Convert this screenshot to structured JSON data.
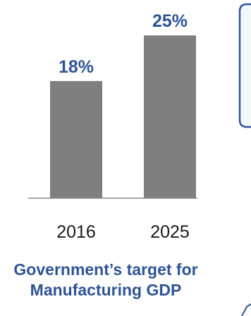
{
  "chart_data": {
    "type": "bar",
    "categories": [
      "2016",
      "2025"
    ],
    "values": [
      18,
      25
    ],
    "data_labels": [
      "18%",
      "25%"
    ],
    "unit": "%",
    "ylim": [
      0,
      26
    ],
    "grid": false,
    "legend": "none",
    "bar_color": "#7f7f7f",
    "label_color": "#2f5496",
    "axis_color": "#8c8c8c"
  },
  "caption": {
    "line1": "Government’s target for",
    "line2": "Manufacturing GDP"
  },
  "colors": {
    "caption": "#2f5496",
    "callout_border": "#2f5496",
    "callout_fill": "#f3f6fb"
  }
}
